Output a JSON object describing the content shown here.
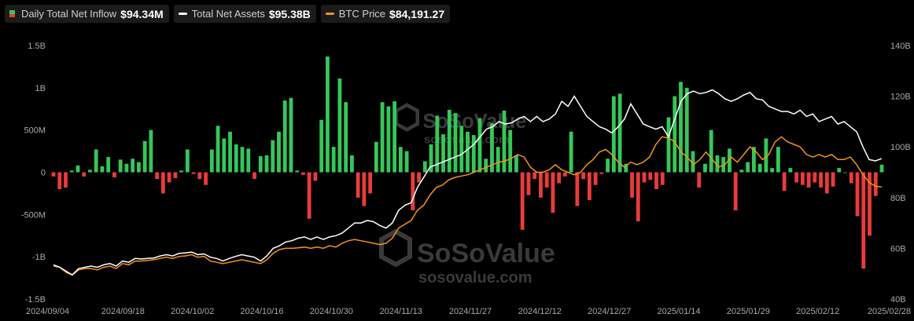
{
  "legend": {
    "inflow": {
      "label": "Daily Total Net Inflow",
      "value": "$94.34M",
      "color_pos": "#35c759",
      "color_neg": "#ea3b3b"
    },
    "assets": {
      "label": "Total Net Assets",
      "value": "$95.38B",
      "color": "#ffffff"
    },
    "btc": {
      "label": "BTC Price",
      "value": "$84,191.27",
      "color": "#f7931a"
    }
  },
  "watermark": {
    "brand": "SoSoValue",
    "url": "sosovalue.com"
  },
  "chart_data": {
    "type": "bar",
    "x_tick_labels": [
      "2024/09/04",
      "2024/09/18",
      "2024/10/02",
      "2024/10/16",
      "2024/10/30",
      "2024/11/13",
      "2024/11/27",
      "2024/12/12",
      "2024/12/27",
      "2025/01/14",
      "2025/01/29",
      "2025/02/12",
      "2025/02/28"
    ],
    "left_axis": {
      "ticks": [
        "1.5B",
        "1B",
        "500M",
        "0",
        "-500M",
        "-1B",
        "-1.5B"
      ],
      "range": [
        -1.5,
        1.5
      ],
      "unit": "B USD"
    },
    "right_axis": {
      "ticks": [
        "140B",
        "120B",
        "100B",
        "80B",
        "60B",
        "40B"
      ],
      "range": [
        40,
        140
      ],
      "unit": "B USD"
    },
    "grid": false,
    "series": [
      {
        "name": "Daily Total Net Inflow",
        "kind": "bar",
        "axis": "left",
        "values": [
          -0.05,
          -0.2,
          -0.18,
          0.02,
          0.08,
          -0.05,
          0.03,
          0.27,
          0.07,
          0.18,
          -0.06,
          0.15,
          0.1,
          0.16,
          0.12,
          0.37,
          0.5,
          -0.08,
          -0.25,
          -0.12,
          -0.07,
          0.02,
          0.27,
          -0.02,
          -0.08,
          -0.15,
          0.27,
          0.55,
          0.4,
          0.48,
          0.33,
          0.3,
          0.28,
          -0.08,
          0.19,
          0.2,
          0.38,
          0.48,
          0.85,
          0.88,
          0.02,
          -0.03,
          -0.55,
          -0.1,
          0.62,
          1.37,
          0.3,
          1.11,
          0.83,
          0.2,
          -0.3,
          -0.4,
          -0.25,
          0.36,
          0.83,
          0.78,
          0.84,
          0.3,
          0.25,
          -0.45,
          -0.12,
          0.13,
          0.33,
          0.67,
          0.45,
          0.74,
          0.7,
          0.55,
          0.48,
          0.44,
          0.64,
          0.16,
          0.58,
          0.3,
          0.73,
          0.5,
          0.2,
          -0.68,
          -0.27,
          -0.08,
          -0.3,
          -0.18,
          -0.48,
          -0.13,
          -0.05,
          0.48,
          -0.4,
          -0.08,
          -0.33,
          -0.15,
          -0.02,
          0.16,
          0.9,
          0.93,
          0.1,
          -0.3,
          -0.58,
          -0.12,
          -0.09,
          -0.2,
          -0.15,
          0.65,
          0.9,
          1.07,
          1.0,
          0.25,
          -0.18,
          0.1,
          0.5,
          0.2,
          0.18,
          0.28,
          -0.45,
          0.03,
          0.12,
          0.3,
          0.1,
          0.4,
          0.05,
          0.3,
          -0.22,
          0.05,
          -0.12,
          -0.15,
          -0.18,
          -0.12,
          -0.18,
          -0.25,
          -0.17,
          0.05,
          0.0,
          -0.13,
          -0.52,
          -1.14,
          -0.75,
          -0.28,
          0.09
        ]
      },
      {
        "name": "Total Net Assets",
        "kind": "line",
        "axis": "right",
        "values": [
          53.5,
          52.5,
          51.0,
          49.5,
          52.0,
          52.5,
          53.0,
          52.5,
          53.5,
          54.0,
          53.0,
          55.0,
          54.5,
          56.0,
          55.8,
          56.0,
          56.2,
          57.0,
          57.5,
          57.0,
          58.0,
          58.2,
          58.5,
          57.5,
          57.8,
          56.5,
          56.0,
          55.0,
          56.0,
          56.8,
          57.5,
          57.0,
          56.5,
          55.0,
          57.0,
          60.0,
          61.0,
          62.5,
          63.0,
          64.0,
          64.5,
          63.5,
          64.5,
          63.5,
          64.5,
          65.0,
          66.0,
          68.0,
          70.0,
          70.0,
          71.0,
          70.5,
          69.0,
          68.0,
          70.0,
          75.0,
          77.0,
          78.0,
          84.0,
          88.0,
          92.0,
          93.0,
          94.0,
          95.0,
          96.0,
          97.0,
          99.0,
          101.0,
          104.0,
          107.0,
          108.0,
          110.0,
          109.0,
          109.5,
          111.0,
          112.0,
          110.0,
          112.0,
          110.0,
          111.0,
          113.0,
          118.0,
          116.0,
          120.0,
          116.0,
          112.0,
          110.0,
          108.0,
          107.0,
          105.5,
          108.0,
          111.0,
          117.0,
          113.0,
          109.0,
          108.0,
          107.0,
          108.0,
          104.0,
          111.0,
          118.0,
          121.0,
          122.0,
          121.0,
          121.5,
          122.5,
          121.0,
          119.0,
          118.0,
          119.0,
          120.5,
          121.5,
          119.0,
          118.5,
          116.0,
          115.0,
          114.0,
          114.0,
          113.0,
          114.5,
          112.0,
          113.0,
          110.0,
          111.0,
          112.0,
          109.0,
          110.0,
          108.0,
          106.0,
          100.0,
          95.0,
          94.5,
          95.38
        ]
      },
      {
        "name": "BTC Price",
        "kind": "line",
        "axis": "right",
        "values": [
          53.0,
          52.5,
          50.5,
          49.5,
          51.5,
          52.0,
          52.0,
          51.5,
          52.5,
          53.0,
          52.0,
          54.0,
          53.5,
          55.0,
          55.0,
          55.2,
          55.5,
          56.0,
          56.5,
          56.0,
          56.8,
          57.0,
          57.5,
          56.5,
          56.8,
          55.0,
          54.5,
          54.0,
          54.5,
          55.0,
          55.5,
          55.0,
          54.5,
          54.0,
          55.5,
          58.0,
          59.5,
          60.0,
          60.0,
          60.2,
          60.5,
          60.0,
          60.5,
          60.0,
          61.0,
          60.5,
          62.0,
          63.0,
          63.5,
          63.0,
          62.5,
          62.0,
          61.5,
          62.0,
          64.0,
          68.0,
          69.5,
          71.0,
          75.0,
          77.0,
          81.0,
          84.0,
          85.0,
          87.0,
          88.0,
          88.5,
          89.0,
          90.0,
          91.0,
          92.0,
          93.0,
          94.0,
          94.5,
          95.5,
          97.0,
          96.0,
          92.0,
          90.0,
          90.0,
          91.0,
          93.0,
          91.0,
          90.0,
          89.0,
          90.0,
          93.0,
          95.0,
          98.0,
          99.0,
          97.0,
          94.0,
          92.0,
          94.0,
          93.0,
          94.0,
          96.0,
          101.0,
          104.0,
          103.5,
          102.0,
          98.0,
          96.0,
          93.0,
          95.0,
          98.0,
          95.0,
          92.0,
          93.0,
          96.0,
          94.0,
          97.0,
          100.0,
          98.0,
          95.0,
          97.0,
          102.0,
          104.0,
          102.0,
          101.0,
          100.0,
          97.0,
          96.0,
          97.0,
          96.0,
          97.0,
          95.0,
          95.0,
          96.0,
          93.0,
          89.0,
          86.0,
          84.5,
          84.19
        ]
      }
    ]
  }
}
